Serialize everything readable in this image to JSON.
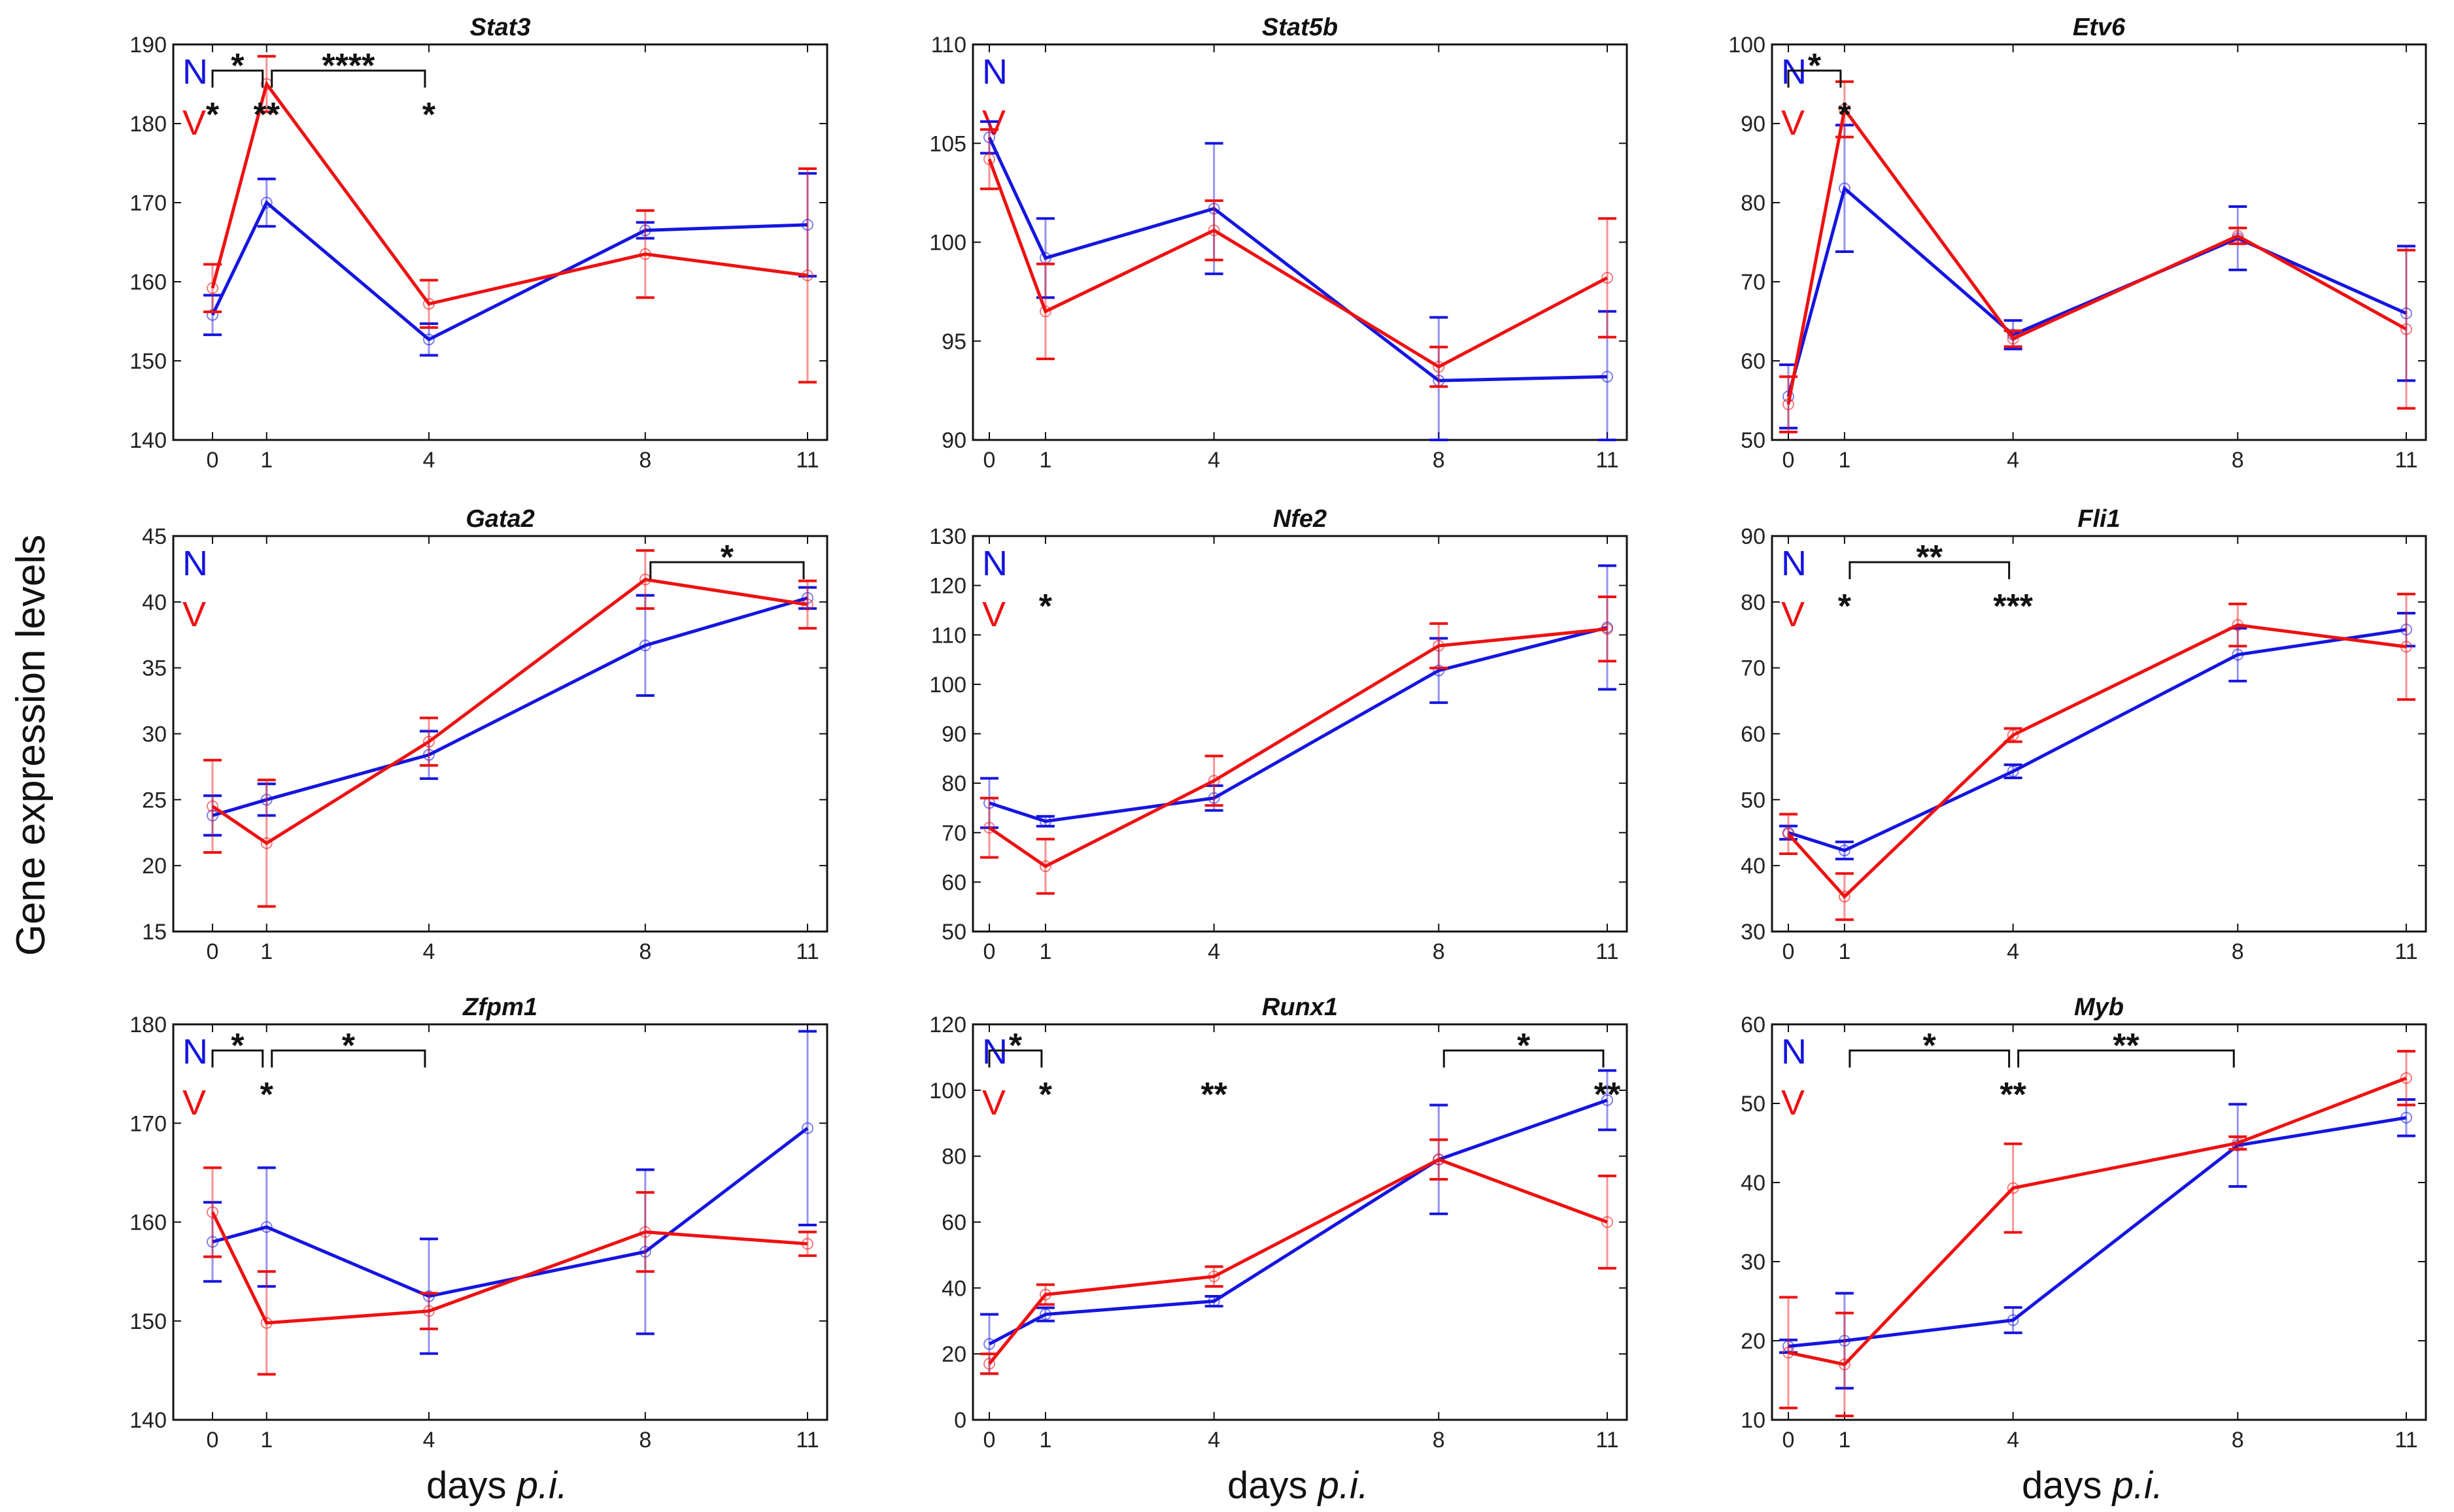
{
  "figure": {
    "ylabel": "Gene expression levels",
    "xlabel_prefix": "days ",
    "xlabel_italic": "p.i.",
    "legend": {
      "N": "N",
      "V": "V"
    },
    "colors": {
      "N": "#1515e0",
      "V": "#ee1111",
      "axis": "#111111"
    }
  },
  "chart_data": [
    {
      "type": "line",
      "title": "Stat3",
      "x": [
        0,
        1,
        4,
        8,
        11
      ],
      "ylim": [
        140,
        190
      ],
      "yticks": [
        140,
        150,
        160,
        170,
        180,
        190
      ],
      "series": [
        {
          "name": "N",
          "values": [
            155.8,
            170,
            152.7,
            166.5,
            167.2
          ],
          "err": [
            2.5,
            3,
            2,
            1,
            6.5
          ]
        },
        {
          "name": "V",
          "values": [
            159.2,
            185,
            157.2,
            163.5,
            160.8
          ],
          "err": [
            3,
            3.5,
            3,
            5.5,
            13.5
          ]
        }
      ],
      "annotations": [
        {
          "row": "N",
          "text": "*",
          "x": 0.6,
          "bracket": [
            0,
            1
          ]
        },
        {
          "row": "N",
          "text": "****",
          "x": 2.5,
          "bracket": [
            1,
            4
          ]
        },
        {
          "row": "V",
          "text": "*",
          "x": 0
        },
        {
          "row": "V",
          "text": "**",
          "x": 1
        },
        {
          "row": "V",
          "text": "*",
          "x": 4
        }
      ]
    },
    {
      "type": "line",
      "title": "Stat5b",
      "x": [
        0,
        1,
        4,
        8,
        11
      ],
      "ylim": [
        90,
        110
      ],
      "yticks": [
        90,
        95,
        100,
        105,
        110
      ],
      "series": [
        {
          "name": "N",
          "values": [
            105.3,
            99.2,
            101.7,
            93,
            93.2
          ],
          "err": [
            0.8,
            2,
            3.3,
            3.2,
            3.3
          ]
        },
        {
          "name": "V",
          "values": [
            104.2,
            96.5,
            100.6,
            93.7,
            98.2
          ],
          "err": [
            1.5,
            2.4,
            1.5,
            1,
            3
          ]
        }
      ],
      "annotations": []
    },
    {
      "type": "line",
      "title": "Etv6",
      "x": [
        0,
        1,
        4,
        8,
        11
      ],
      "ylim": [
        50,
        100
      ],
      "yticks": [
        50,
        60,
        70,
        80,
        90,
        100
      ],
      "series": [
        {
          "name": "N",
          "values": [
            55.5,
            81.8,
            63.3,
            75.5,
            66
          ],
          "err": [
            4,
            8,
            1.8,
            4,
            8.5
          ]
        },
        {
          "name": "V",
          "values": [
            54.5,
            91.8,
            62.8,
            75.8,
            64
          ],
          "err": [
            3.5,
            3.5,
            1,
            1,
            10
          ]
        }
      ],
      "annotations": [
        {
          "row": "N",
          "text": "*",
          "x": 0.6,
          "bracket": [
            0,
            1
          ]
        },
        {
          "row": "V",
          "text": "*",
          "x": 1
        }
      ]
    },
    {
      "type": "line",
      "title": "Gata2",
      "x": [
        0,
        1,
        4,
        8,
        11
      ],
      "ylim": [
        15,
        45
      ],
      "yticks": [
        15,
        20,
        25,
        30,
        35,
        40,
        45
      ],
      "series": [
        {
          "name": "N",
          "values": [
            23.8,
            25,
            28.4,
            36.7,
            40.3
          ],
          "err": [
            1.5,
            1.2,
            1.8,
            3.8,
            0.8
          ]
        },
        {
          "name": "V",
          "values": [
            24.5,
            21.7,
            29.4,
            41.7,
            39.8
          ],
          "err": [
            3.5,
            4.8,
            1.8,
            2.2,
            1.8
          ]
        }
      ],
      "annotations": [
        {
          "row": "N",
          "text": "*",
          "x": 9.5,
          "bracket": [
            8,
            11
          ]
        }
      ]
    },
    {
      "type": "line",
      "title": "Nfe2",
      "x": [
        0,
        1,
        4,
        8,
        11
      ],
      "ylim": [
        50,
        130
      ],
      "yticks": [
        50,
        60,
        70,
        80,
        90,
        100,
        110,
        120,
        130
      ],
      "series": [
        {
          "name": "N",
          "values": [
            76,
            72.3,
            77,
            102.8,
            111.5
          ],
          "err": [
            5,
            1,
            2.5,
            6.5,
            12.5
          ]
        },
        {
          "name": "V",
          "values": [
            71,
            63.2,
            80.5,
            107.8,
            111.2
          ],
          "err": [
            6,
            5.5,
            5,
            4.5,
            6.5
          ]
        }
      ],
      "annotations": [
        {
          "row": "V",
          "text": "*",
          "x": 1
        }
      ]
    },
    {
      "type": "line",
      "title": "Fli1",
      "x": [
        0,
        1,
        4,
        8,
        11
      ],
      "ylim": [
        30,
        90
      ],
      "yticks": [
        30,
        40,
        50,
        60,
        70,
        80,
        90
      ],
      "series": [
        {
          "name": "N",
          "values": [
            45,
            42.3,
            54.3,
            72,
            75.8
          ],
          "err": [
            1,
            1.3,
            1,
            4,
            2.5
          ]
        },
        {
          "name": "V",
          "values": [
            44.8,
            35.3,
            59.8,
            76.5,
            73.2
          ],
          "err": [
            3,
            3.5,
            1,
            3.2,
            8
          ]
        }
      ],
      "annotations": [
        {
          "row": "N",
          "text": "**",
          "x": 2.5,
          "bracket": [
            1,
            4
          ]
        },
        {
          "row": "V",
          "text": "*",
          "x": 1
        },
        {
          "row": "V",
          "text": "***",
          "x": 4
        }
      ]
    },
    {
      "type": "line",
      "title": "Zfpm1",
      "x": [
        0,
        1,
        4,
        8,
        11
      ],
      "ylim": [
        140,
        180
      ],
      "yticks": [
        140,
        150,
        160,
        170,
        180
      ],
      "series": [
        {
          "name": "N",
          "values": [
            158,
            159.5,
            152.5,
            157,
            169.5
          ],
          "err": [
            4,
            6,
            5.8,
            8.3,
            9.8
          ]
        },
        {
          "name": "V",
          "values": [
            161,
            149.8,
            151,
            159,
            157.8
          ],
          "err": [
            4.5,
            5.2,
            1.8,
            4,
            1.2
          ]
        }
      ],
      "annotations": [
        {
          "row": "N",
          "text": "*",
          "x": 0.6,
          "bracket": [
            0,
            1
          ]
        },
        {
          "row": "N",
          "text": "*",
          "x": 2.5,
          "bracket": [
            1,
            4
          ]
        },
        {
          "row": "V",
          "text": "*",
          "x": 1
        }
      ]
    },
    {
      "type": "line",
      "title": "Runx1",
      "x": [
        0,
        1,
        4,
        8,
        11
      ],
      "ylim": [
        0,
        120
      ],
      "yticks": [
        0,
        20,
        40,
        60,
        80,
        100,
        120
      ],
      "series": [
        {
          "name": "N",
          "values": [
            23,
            32,
            36,
            79,
            97
          ],
          "err": [
            9,
            2,
            1.5,
            16.5,
            9
          ]
        },
        {
          "name": "V",
          "values": [
            17,
            38,
            43.5,
            79,
            60
          ],
          "err": [
            3,
            3,
            3,
            6,
            14
          ]
        }
      ],
      "annotations": [
        {
          "row": "N",
          "text": "*",
          "x": 0.6,
          "bracket": [
            0,
            1
          ]
        },
        {
          "row": "N",
          "text": "*",
          "x": 9.5,
          "bracket": [
            8,
            11
          ]
        },
        {
          "row": "V",
          "text": "*",
          "x": 1
        },
        {
          "row": "V",
          "text": "**",
          "x": 4
        },
        {
          "row": "V",
          "text": "**",
          "x": 11
        }
      ]
    },
    {
      "type": "line",
      "title": "Myb",
      "x": [
        0,
        1,
        4,
        8,
        11
      ],
      "ylim": [
        10,
        60
      ],
      "yticks": [
        10,
        20,
        30,
        40,
        50,
        60
      ],
      "series": [
        {
          "name": "N",
          "values": [
            19.3,
            20,
            22.6,
            44.7,
            48.2
          ],
          "err": [
            0.8,
            6,
            1.6,
            5.2,
            2.3
          ]
        },
        {
          "name": "V",
          "values": [
            18.5,
            17,
            39.3,
            45,
            53.2
          ],
          "err": [
            7,
            6.5,
            5.6,
            0.8,
            3.4
          ]
        }
      ],
      "annotations": [
        {
          "row": "N",
          "text": "*",
          "x": 2.5,
          "bracket": [
            1,
            4
          ]
        },
        {
          "row": "N",
          "text": "**",
          "x": 6,
          "bracket": [
            4,
            8
          ]
        },
        {
          "row": "V",
          "text": "**",
          "x": 4
        }
      ]
    }
  ]
}
